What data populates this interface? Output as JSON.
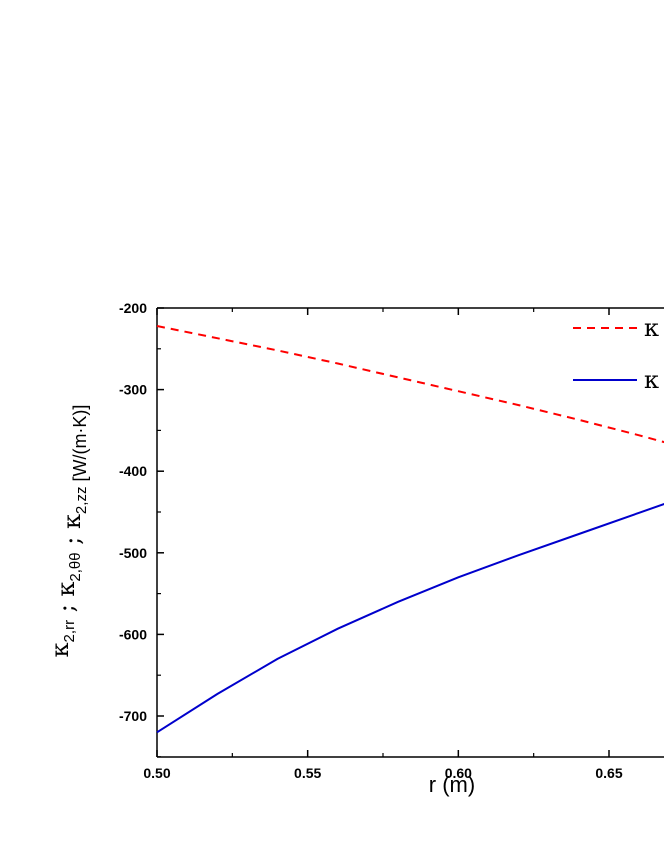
{
  "chart_data": {
    "type": "line",
    "xlabel": "r (m)",
    "ylabel": {
      "parts": [
        {
          "main": "κ",
          "sub": "2,rr"
        },
        {
          "main": " ; κ",
          "sub": "2,θθ"
        },
        {
          "main": " ; κ",
          "sub": "2,zz"
        }
      ],
      "unit": " [W/(m·K)]"
    },
    "xlim": [
      0.5,
      0.67
    ],
    "ylim": [
      -750,
      -200
    ],
    "x_ticks": [
      "0.50",
      "0.55",
      "0.60",
      "0.65"
    ],
    "x_tick_values": [
      0.5,
      0.55,
      0.6,
      0.65
    ],
    "y_ticks": [
      "-200",
      "-300",
      "-400",
      "-500",
      "-600",
      "-700"
    ],
    "y_tick_values": [
      -200,
      -300,
      -400,
      -500,
      -600,
      -700
    ],
    "series": [
      {
        "name": "κ",
        "color": "#ff0000",
        "dash": "dashed",
        "x": [
          0.5,
          0.52,
          0.54,
          0.56,
          0.58,
          0.6,
          0.62,
          0.64,
          0.66,
          0.67
        ],
        "y": [
          -222,
          -237,
          -252,
          -268,
          -285,
          -302,
          -319,
          -337,
          -356,
          -366
        ]
      },
      {
        "name": "κ",
        "color": "#0000cc",
        "dash": "solid",
        "x": [
          0.5,
          0.52,
          0.54,
          0.56,
          0.58,
          0.6,
          0.62,
          0.64,
          0.66,
          0.67
        ],
        "y": [
          -720,
          -673,
          -630,
          -593,
          -560,
          -530,
          -503,
          -477,
          -451,
          -438
        ]
      }
    ],
    "legend_position": "top-right",
    "grid": false
  }
}
